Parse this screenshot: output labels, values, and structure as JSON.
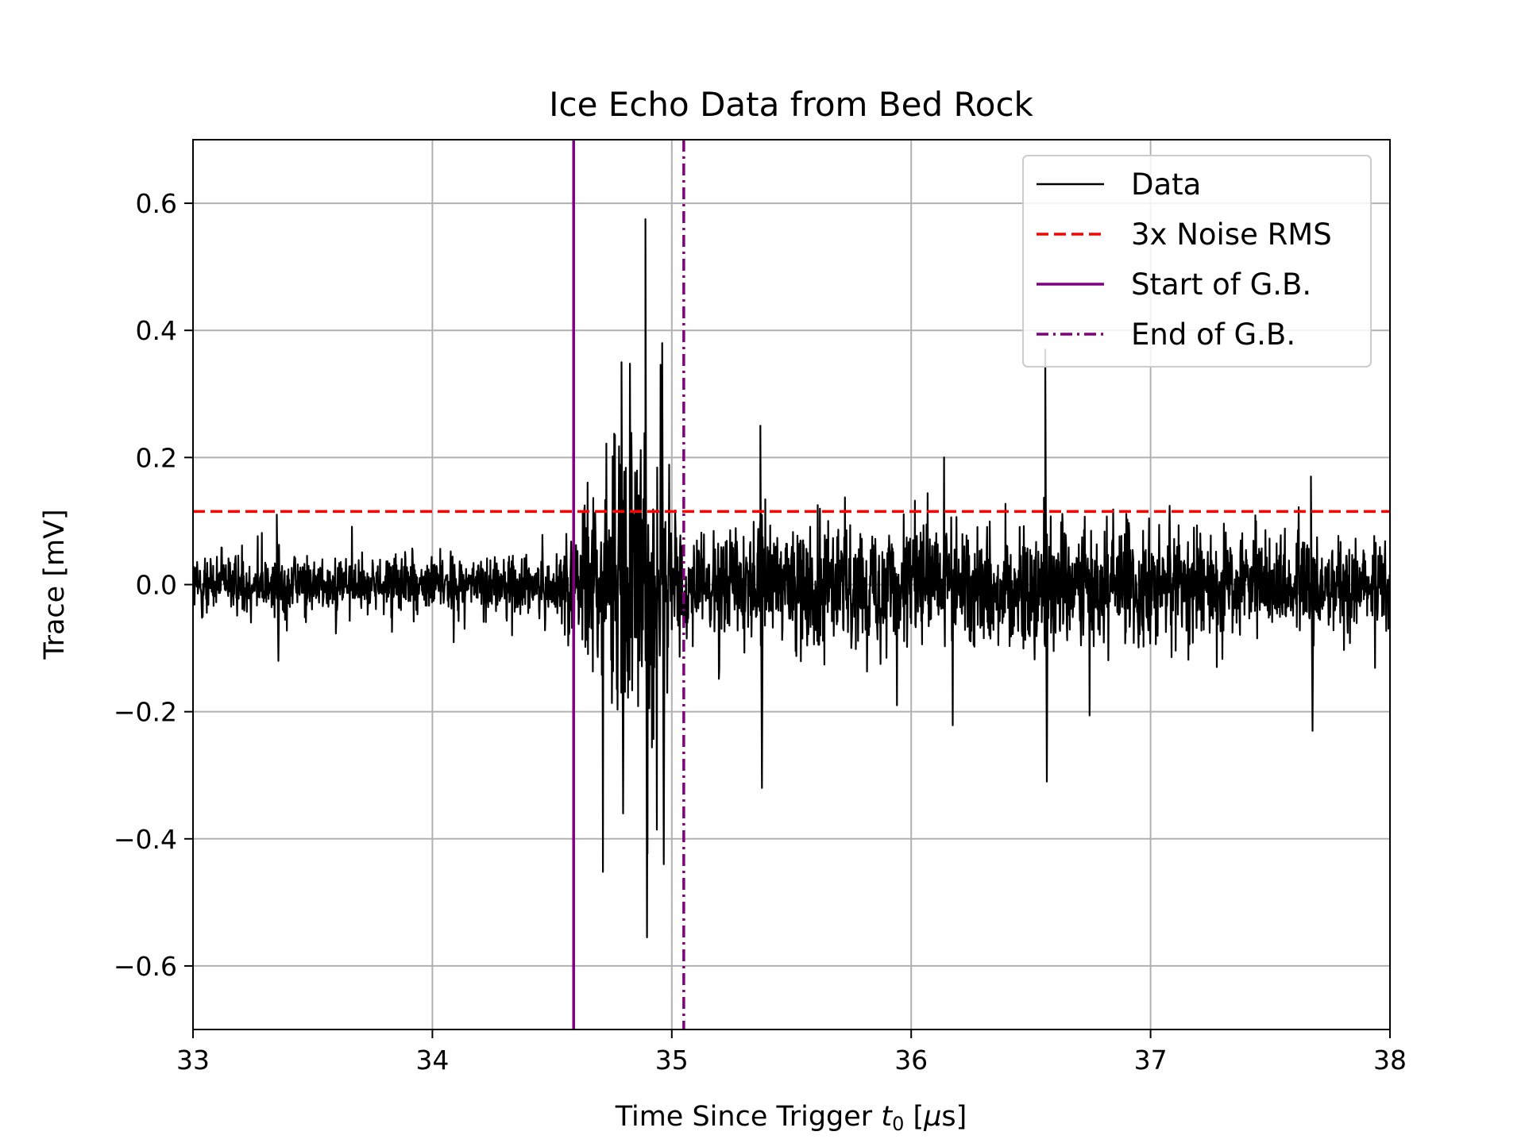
{
  "chart_data": {
    "type": "line",
    "title": "Ice Echo Data from Bed Rock",
    "xlabel": {
      "prefix": "Time Since Trigger ",
      "var": "t",
      "sub": "0",
      "open": " [",
      "mu": "μ",
      "unit": "s]"
    },
    "ylabel": "Trace [mV]",
    "xlim": [
      33,
      38
    ],
    "ylim": [
      -0.7,
      0.7
    ],
    "xticks": [
      33,
      34,
      35,
      36,
      37,
      38
    ],
    "xtick_labels": [
      "33",
      "34",
      "35",
      "36",
      "37",
      "38"
    ],
    "yticks": [
      -0.6,
      -0.4,
      -0.2,
      0.0,
      0.2,
      0.4,
      0.6
    ],
    "ytick_labels": [
      "−0.6",
      "−0.4",
      "−0.2",
      "0.0",
      "0.2",
      "0.4",
      "0.6"
    ],
    "grid": true,
    "legend_position": "top-right",
    "series": [
      {
        "name": "Data",
        "style": "solid",
        "color": "#000000",
        "description": "noisy trace",
        "envelope": [
          {
            "x": 33.0,
            "amp": 0.07
          },
          {
            "x": 34.5,
            "amp": 0.07
          },
          {
            "x": 34.6,
            "amp": 0.14
          },
          {
            "x": 34.75,
            "amp": 0.33
          },
          {
            "x": 34.95,
            "amp": 0.33
          },
          {
            "x": 35.05,
            "amp": 0.12
          },
          {
            "x": 36.0,
            "amp": 0.15
          },
          {
            "x": 36.9,
            "amp": 0.15
          },
          {
            "x": 37.4,
            "amp": 0.11
          },
          {
            "x": 38.0,
            "amp": 0.1
          }
        ],
        "spikes": [
          {
            "x": 34.89,
            "min": -0.555,
            "max": 0.575
          },
          {
            "x": 34.79,
            "min": -0.36,
            "max": 0.35
          },
          {
            "x": 34.96,
            "min": -0.44,
            "max": 0.38
          },
          {
            "x": 36.56,
            "min": -0.31,
            "max": 0.37
          },
          {
            "x": 33.35,
            "min": -0.12,
            "max": 0.11
          },
          {
            "x": 35.37,
            "min": -0.32,
            "max": 0.25
          },
          {
            "x": 37.67,
            "min": -0.23,
            "max": 0.17
          }
        ]
      },
      {
        "name": "3x Noise RMS",
        "style": "dashed",
        "color": "#ff0000",
        "y": 0.115
      },
      {
        "name": "Start of G.B.",
        "style": "solid",
        "color": "#800080",
        "x": 34.59
      },
      {
        "name": "End of G.B.",
        "style": "dashdot",
        "color": "#800080",
        "x": 35.05
      }
    ]
  }
}
